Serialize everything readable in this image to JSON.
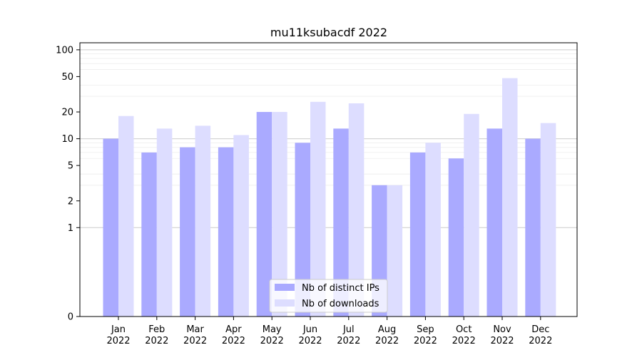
{
  "chart_data": {
    "type": "bar",
    "title": "mu11ksubacdf 2022",
    "xlabel": "",
    "ylabel": "",
    "y_scale": "symlog",
    "ylim": [
      0,
      120
    ],
    "y_ticks": [
      0,
      1,
      2,
      5,
      10,
      20,
      50,
      100
    ],
    "y_tick_labels": [
      "0",
      "1",
      "2",
      "5",
      "10",
      "20",
      "50",
      "100"
    ],
    "grid": "horizontal",
    "legend_position": "bottom-center",
    "categories": [
      [
        "Jan",
        "2022"
      ],
      [
        "Feb",
        "2022"
      ],
      [
        "Mar",
        "2022"
      ],
      [
        "Apr",
        "2022"
      ],
      [
        "May",
        "2022"
      ],
      [
        "Jun",
        "2022"
      ],
      [
        "Jul",
        "2022"
      ],
      [
        "Aug",
        "2022"
      ],
      [
        "Sep",
        "2022"
      ],
      [
        "Oct",
        "2022"
      ],
      [
        "Nov",
        "2022"
      ],
      [
        "Dec",
        "2022"
      ]
    ],
    "series": [
      {
        "name": "Nb of distinct IPs",
        "color": "#aaaaff",
        "values": [
          10,
          7,
          8,
          8,
          20,
          9,
          13,
          3,
          7,
          6,
          13,
          10
        ]
      },
      {
        "name": "Nb of downloads",
        "color": "#ddddff",
        "values": [
          18,
          13,
          14,
          11,
          20,
          26,
          25,
          3,
          9,
          19,
          48,
          15
        ]
      }
    ]
  }
}
